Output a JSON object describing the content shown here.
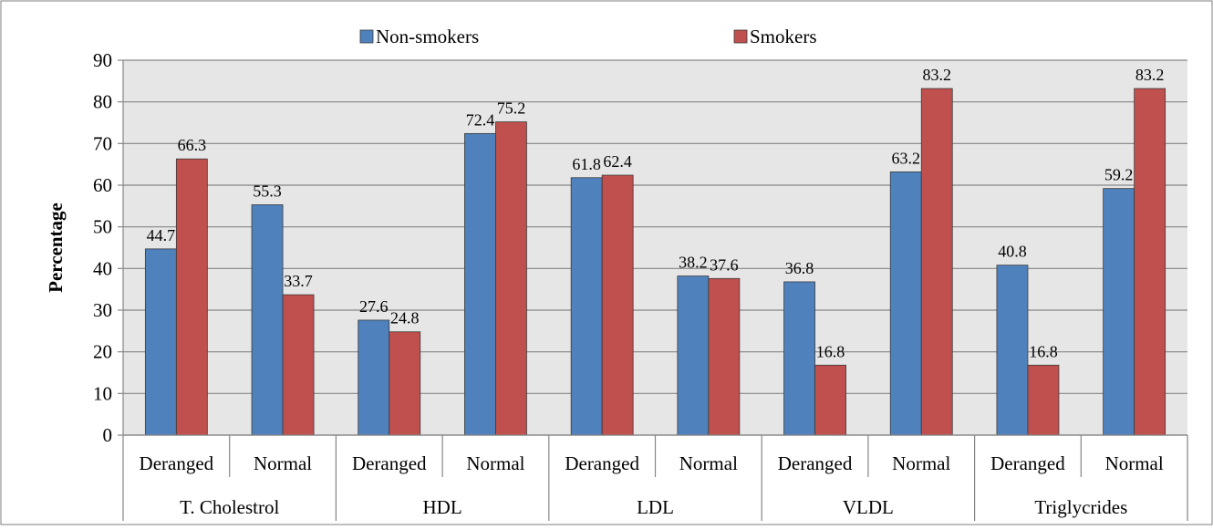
{
  "chart_data": {
    "type": "bar",
    "title": "",
    "ylabel": "Percentage",
    "xlabel": "",
    "ylim": [
      0,
      90
    ],
    "yticks": [
      0,
      10,
      20,
      30,
      40,
      50,
      60,
      70,
      80,
      90
    ],
    "grid": true,
    "legend_position": "top",
    "groups": [
      "T. Cholestrol",
      "HDL",
      "LDL",
      "VLDL",
      "Triglycrides"
    ],
    "categories": [
      "Deranged",
      "Normal",
      "Deranged",
      "Normal",
      "Deranged",
      "Normal",
      "Deranged",
      "Normal",
      "Deranged",
      "Normal"
    ],
    "series": [
      {
        "name": "Non-smokers",
        "color": "#4f81bd",
        "values": [
          44.7,
          55.3,
          27.6,
          72.4,
          61.8,
          38.2,
          36.8,
          63.2,
          40.8,
          59.2
        ]
      },
      {
        "name": "Smokers",
        "color": "#c0504d",
        "values": [
          66.3,
          33.7,
          24.8,
          75.2,
          62.4,
          37.6,
          16.8,
          83.2,
          16.8,
          83.2
        ]
      }
    ],
    "plot_background": "#e6e6e6"
  }
}
